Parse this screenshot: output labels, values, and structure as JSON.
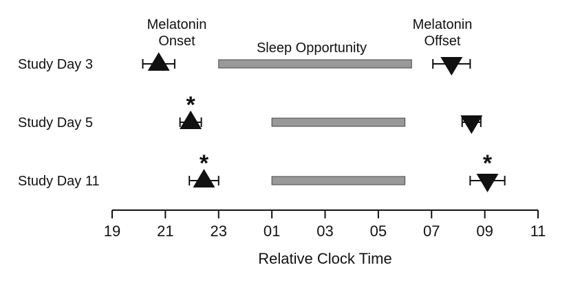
{
  "chart_data": {
    "type": "timeline",
    "xlabel": "Relative Clock Time",
    "x_ticks": [
      "19",
      "21",
      "23",
      "01",
      "03",
      "05",
      "07",
      "09",
      "11"
    ],
    "x_range_hours": [
      19,
      35
    ],
    "annotations": {
      "onset": "Melatonin\nOnset",
      "sleep": "Sleep Opportunity",
      "offset": "Melatonin\nOffset"
    },
    "rows": [
      {
        "label": "Study Day 3",
        "sleep": [
          23,
          30.25
        ],
        "onset": {
          "mean": 20.75,
          "error": 0.6,
          "significant": false
        },
        "offset": {
          "mean": 31.75,
          "error": 0.7,
          "significant": false
        }
      },
      {
        "label": "Study Day 5",
        "sleep": [
          25,
          30
        ],
        "onset": {
          "mean": 21.95,
          "error": 0.4,
          "significant": true
        },
        "offset": {
          "mean": 32.5,
          "error": 0.35,
          "significant": false
        }
      },
      {
        "label": "Study Day 11",
        "sleep": [
          25,
          30
        ],
        "onset": {
          "mean": 22.45,
          "error": 0.55,
          "significant": true
        },
        "offset": {
          "mean": 33.1,
          "error": 0.65,
          "significant": true
        }
      }
    ],
    "markers": {
      "onset": "up-triangle",
      "offset": "down-triangle",
      "significance": "*"
    },
    "colors": {
      "sleep_bar_fill": "#999999",
      "sleep_bar_stroke": "#444444",
      "marker": "#111111",
      "axis": "#111111"
    }
  }
}
